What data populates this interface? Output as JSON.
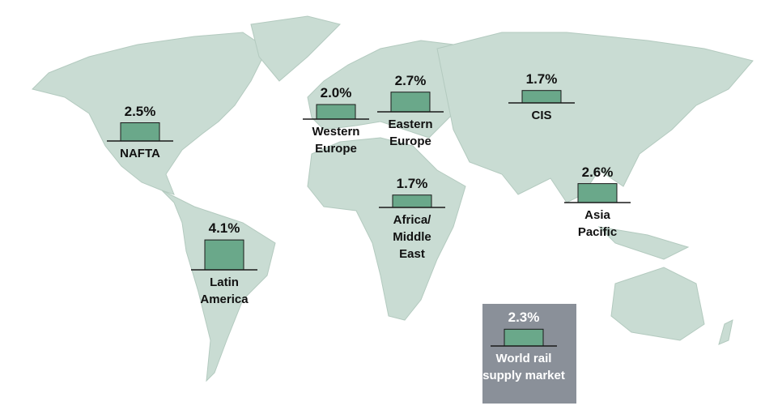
{
  "regions": [
    {
      "name": "NAFTA",
      "value": 2.5,
      "value_label": "2.5%"
    },
    {
      "name": "Latin America",
      "value": 4.1,
      "value_label": "4.1%"
    },
    {
      "name": "Western Europe",
      "value": 2.0,
      "value_label": "2.0%"
    },
    {
      "name": "Eastern Europe",
      "value": 2.7,
      "value_label": "2.7%"
    },
    {
      "name": "CIS",
      "value": 1.7,
      "value_label": "1.7%"
    },
    {
      "name": "Africa/ Middle East",
      "value": 1.7,
      "value_label": "1.7%"
    },
    {
      "name": "Asia Pacific",
      "value": 2.6,
      "value_label": "2.6%"
    }
  ],
  "world": {
    "name": "World rail supply market",
    "value": 2.3,
    "value_label": "2.3%"
  }
}
